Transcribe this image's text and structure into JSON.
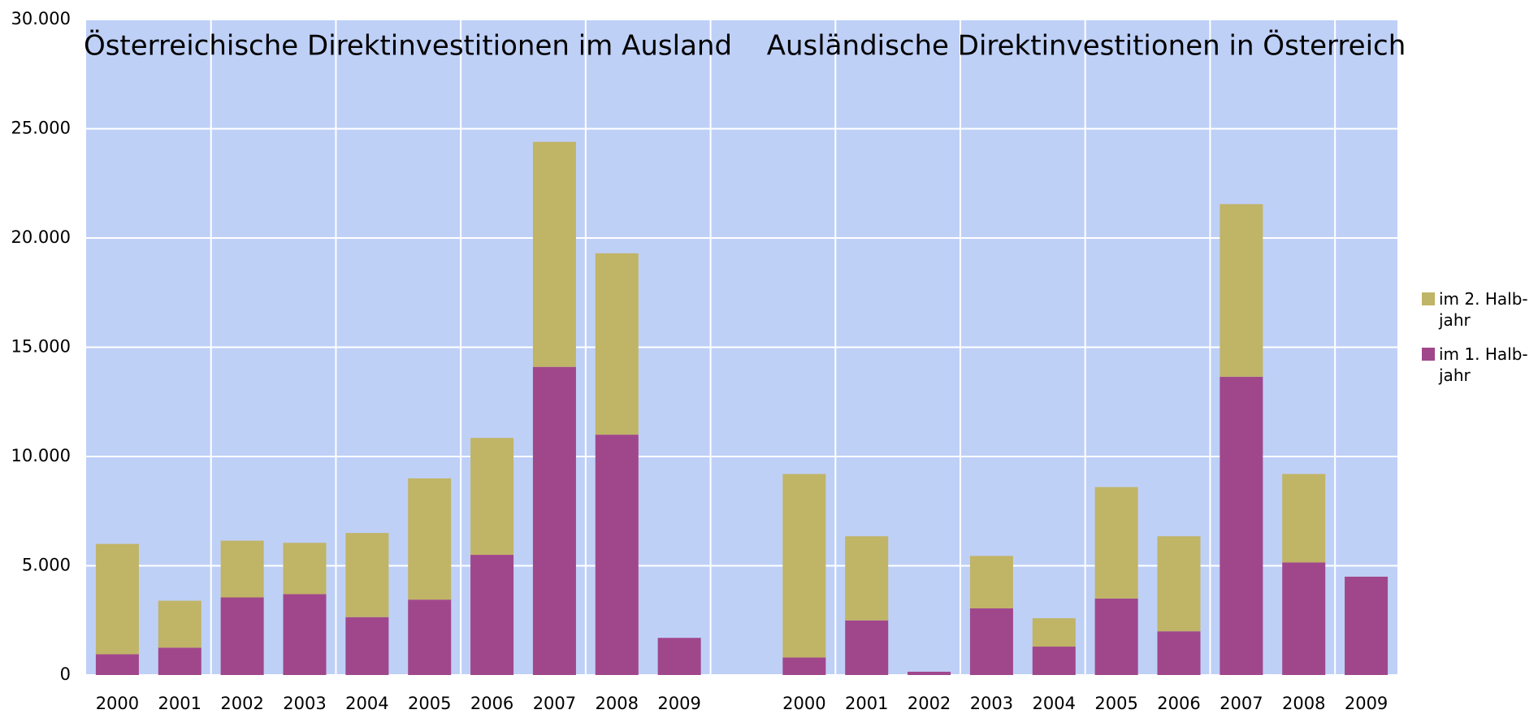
{
  "chart_data": {
    "type": "stacked-bar",
    "annotations": [
      "Österreichische Direktinvestitionen im Ausland",
      "Ausländische Direktinvestitionen in Österreich"
    ],
    "categories": [
      "2000",
      "2001",
      "2002",
      "2003",
      "2004",
      "2005",
      "2006",
      "2007",
      "2008",
      "2009",
      null,
      "2000",
      "2001",
      "2002",
      "2003",
      "2004",
      "2005",
      "2006",
      "2007",
      "2008",
      "2009"
    ],
    "series": [
      {
        "name": "im 1. Halb­jahr",
        "color": "#a0478c",
        "values": [
          950,
          1250,
          3550,
          3700,
          2650,
          3450,
          5500,
          14100,
          11000,
          1700,
          null,
          800,
          2500,
          150,
          3050,
          1300,
          3500,
          2000,
          13650,
          5150,
          4500
        ]
      },
      {
        "name": "im 2. Halb­jahr",
        "color": "#c0b466",
        "values": [
          5050,
          2150,
          2600,
          2350,
          3850,
          5550,
          5350,
          10300,
          8300,
          0,
          null,
          8400,
          3850,
          0,
          2400,
          1300,
          5100,
          4350,
          7900,
          4050,
          0
        ]
      }
    ],
    "ylim": [
      0,
      30000
    ],
    "yticks": [
      0,
      {
        "value": 5000,
        "label": "5.000"
      },
      {
        "value": 10000,
        "label": "10.000"
      },
      {
        "value": 15000,
        "label": "15.000"
      },
      {
        "value": 20000,
        "label": "20.000"
      },
      {
        "value": 25000,
        "label": "25.000"
      },
      {
        "value": 30000,
        "label": "30.000"
      }
    ],
    "grid": true,
    "plot_background": "#bfd0f7",
    "legend": "right"
  }
}
